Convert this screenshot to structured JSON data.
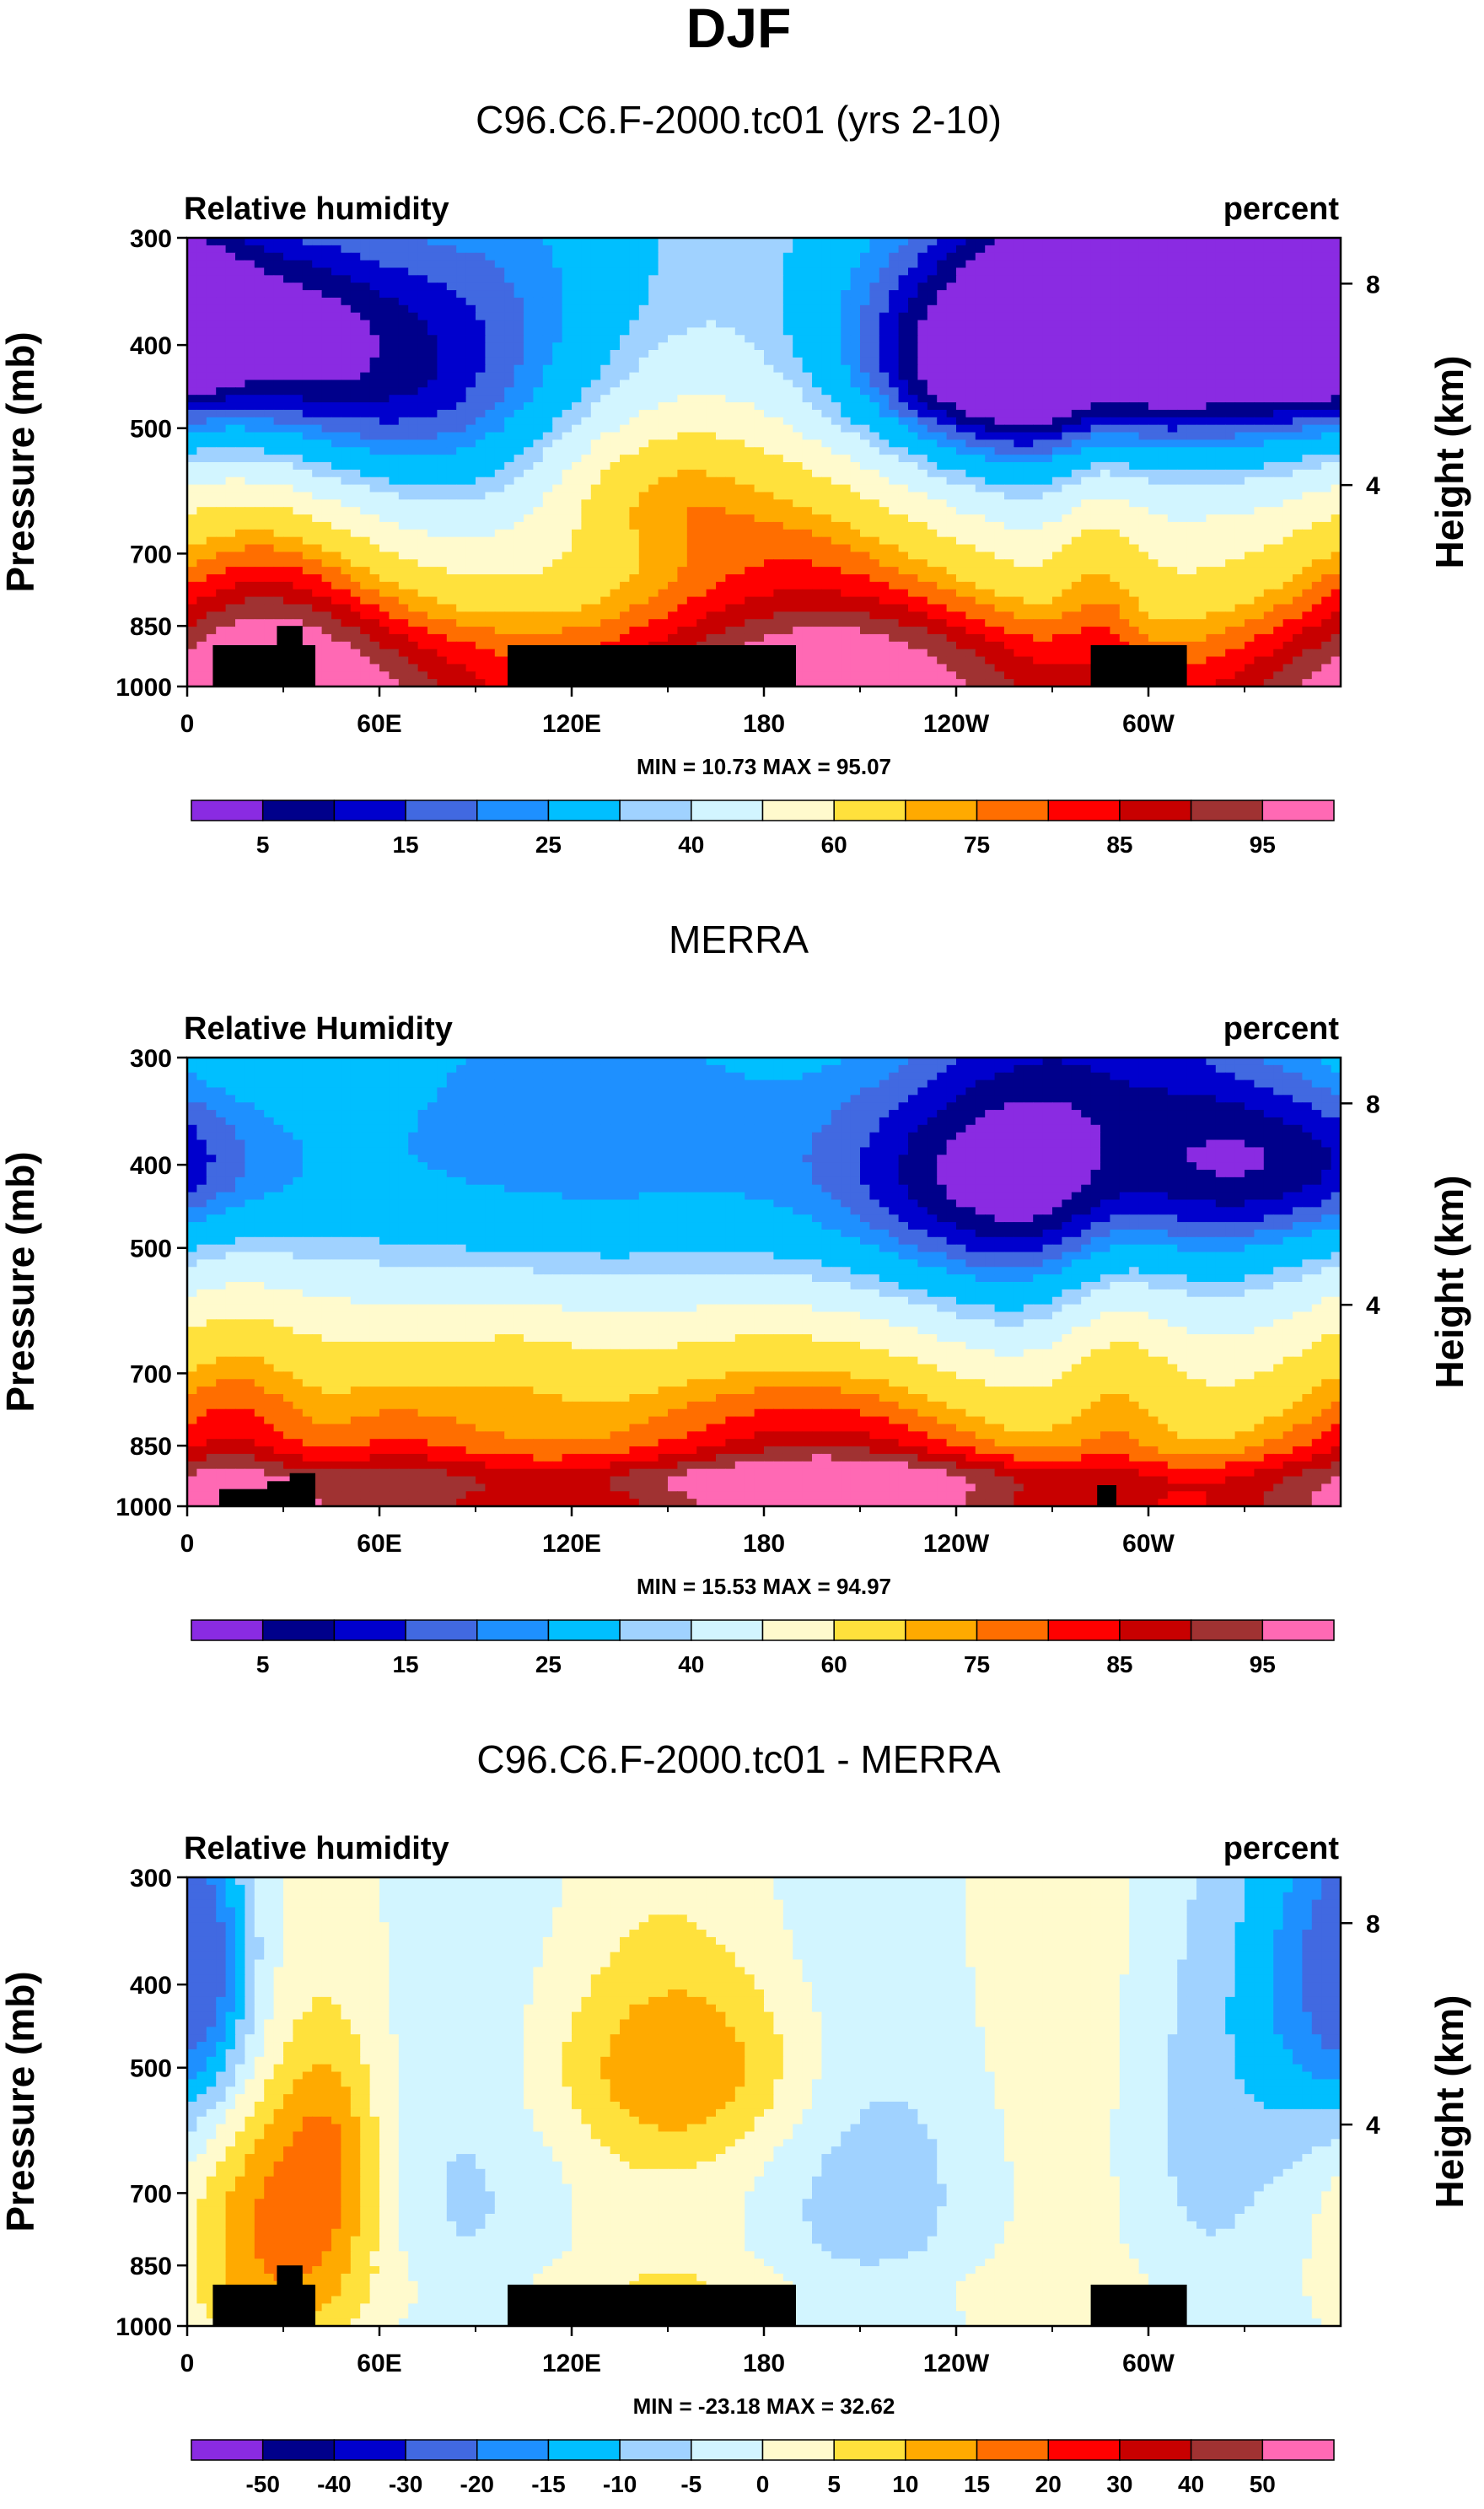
{
  "page_title": "DJF",
  "colors": {
    "abs_palette": [
      "#8a2be2",
      "#00008b",
      "#0000cd",
      "#4169e1",
      "#1e90ff",
      "#00bfff",
      "#a0d2ff",
      "#d2f5ff",
      "#fffacd",
      "#ffe13c",
      "#ffaa00",
      "#ff6e00",
      "#ff0000",
      "#c80000",
      "#a03232",
      "#ff69b4"
    ],
    "diff_palette": [
      "#8a2be2",
      "#00008b",
      "#0000cd",
      "#4169e1",
      "#1e90ff",
      "#00bfff",
      "#a0d2ff",
      "#d2f5ff",
      "#fffacd",
      "#ffe13c",
      "#ffaa00",
      "#ff6e00",
      "#ff0000",
      "#c80000",
      "#a03232",
      "#ff69b4"
    ],
    "land_mask": "#000000"
  },
  "chart_data": [
    {
      "type": "heatmap",
      "title": "C96.C6.F-2000.tc01 (yrs 2-10)",
      "left_label": "Relative humidity",
      "right_label": "percent",
      "ylabel": "Pressure (mb)",
      "y2label": "Height (km)",
      "x_ticks": [
        "0",
        "60E",
        "120E",
        "180",
        "120W",
        "60W"
      ],
      "x_tick_lon": [
        0,
        60,
        120,
        180,
        240,
        300
      ],
      "xlim": [
        0,
        360
      ],
      "y_ticks": [
        "300",
        "400",
        "500",
        "700",
        "850",
        "1000"
      ],
      "y_tick_p": [
        300,
        400,
        500,
        700,
        850,
        1000
      ],
      "ylim": [
        300,
        1000
      ],
      "y2_ticks": [
        "4",
        "8"
      ],
      "y2_tick_km": [
        4,
        8
      ],
      "stats": "MIN = 10.73  MAX = 95.07",
      "colorbar_labels": [
        "5",
        "15",
        "25",
        "40",
        "60",
        "75",
        "85",
        "95"
      ],
      "colorbar_label_boundary": [
        1,
        3,
        5,
        7,
        9,
        11,
        13,
        15
      ],
      "land": [
        [
          8,
          40,
          895
        ],
        [
          28,
          36,
          850
        ],
        [
          100,
          190,
          895
        ],
        [
          282,
          312,
          895
        ]
      ],
      "blobs": [
        [
          60,
          500,
          50,
          160,
          -18
        ],
        [
          65,
          415,
          45,
          120,
          -20
        ],
        [
          240,
          400,
          70,
          160,
          -42
        ],
        [
          250,
          430,
          35,
          70,
          -20
        ],
        [
          350,
          380,
          35,
          90,
          -40
        ],
        [
          355,
          390,
          12,
          40,
          -15
        ],
        [
          150,
          520,
          50,
          180,
          28
        ],
        [
          140,
          580,
          22,
          70,
          10
        ],
        [
          40,
          400,
          22,
          120,
          -12
        ],
        [
          92,
          560,
          40,
          150,
          -5
        ],
        [
          25,
          720,
          25,
          250,
          12
        ],
        [
          180,
          900,
          110,
          80,
          8
        ],
        [
          285,
          700,
          10,
          200,
          12
        ],
        [
          300,
          600,
          25,
          120,
          10
        ],
        [
          320,
          320,
          40,
          60,
          -10
        ]
      ]
    },
    {
      "type": "heatmap",
      "title": "MERRA",
      "left_label": "Relative Humidity",
      "right_label": "percent",
      "ylabel": "Pressure (mb)",
      "y2label": "Height (km)",
      "x_ticks": [
        "0",
        "60E",
        "120E",
        "180",
        "120W",
        "60W"
      ],
      "x_tick_lon": [
        0,
        60,
        120,
        180,
        240,
        300
      ],
      "xlim": [
        0,
        360
      ],
      "y_ticks": [
        "300",
        "400",
        "500",
        "700",
        "850",
        "1000"
      ],
      "y_tick_p": [
        300,
        400,
        500,
        700,
        850,
        1000
      ],
      "ylim": [
        300,
        1000
      ],
      "y2_ticks": [
        "4",
        "8"
      ],
      "y2_tick_km": [
        4,
        8
      ],
      "stats": "MIN = 15.53  MAX = 94.97",
      "colorbar_labels": [
        "5",
        "15",
        "25",
        "40",
        "60",
        "75",
        "85",
        "95"
      ],
      "colorbar_label_boundary": [
        1,
        3,
        5,
        7,
        9,
        11,
        13,
        15
      ],
      "land": [
        [
          10,
          40,
          955
        ],
        [
          25,
          35,
          935
        ],
        [
          32,
          40,
          915
        ],
        [
          284,
          290,
          945
        ]
      ],
      "blobs": [
        [
          45,
          420,
          40,
          140,
          -22
        ],
        [
          225,
          420,
          85,
          170,
          -38
        ],
        [
          250,
          420,
          40,
          80,
          -12
        ],
        [
          350,
          400,
          30,
          70,
          -22
        ],
        [
          125,
          660,
          60,
          200,
          15
        ],
        [
          105,
          660,
          15,
          90,
          5
        ],
        [
          290,
          680,
          15,
          200,
          15
        ],
        [
          20,
          660,
          20,
          150,
          5
        ],
        [
          180,
          930,
          160,
          40,
          10
        ],
        [
          40,
          800,
          15,
          200,
          -10
        ],
        [
          300,
          600,
          25,
          120,
          8
        ]
      ]
    },
    {
      "type": "heatmap",
      "title": "C96.C6.F-2000.tc01 - MERRA",
      "left_label": "Relative humidity",
      "right_label": "percent",
      "ylabel": "Pressure (mb)",
      "y2label": "Height (km)",
      "x_ticks": [
        "0",
        "60E",
        "120E",
        "180",
        "120W",
        "60W"
      ],
      "x_tick_lon": [
        0,
        60,
        120,
        180,
        240,
        300
      ],
      "xlim": [
        0,
        360
      ],
      "y_ticks": [
        "300",
        "400",
        "500",
        "700",
        "850",
        "1000"
      ],
      "y_tick_p": [
        300,
        400,
        500,
        700,
        850,
        1000
      ],
      "ylim": [
        300,
        1000
      ],
      "y2_ticks": [
        "4",
        "8"
      ],
      "y2_tick_km": [
        4,
        8
      ],
      "stats": "MIN = -23.18  MAX = 32.62",
      "colorbar_labels": [
        "-50",
        "-40",
        "-30",
        "-20",
        "-15",
        "-10",
        "-5",
        "0",
        "5",
        "10",
        "15",
        "20",
        "30",
        "40",
        "50"
      ],
      "colorbar_label_boundary": [
        1,
        2,
        3,
        4,
        5,
        6,
        7,
        8,
        9,
        10,
        11,
        12,
        13,
        14,
        15
      ],
      "land": [
        [
          8,
          40,
          895
        ],
        [
          28,
          36,
          850
        ],
        [
          100,
          190,
          895
        ],
        [
          282,
          312,
          895
        ]
      ],
      "blobs": [
        [
          355,
          400,
          20,
          150,
          -16
        ],
        [
          5,
          380,
          10,
          100,
          -14
        ],
        [
          155,
          500,
          30,
          90,
          12
        ],
        [
          220,
          700,
          30,
          180,
          -5
        ],
        [
          30,
          760,
          20,
          180,
          14
        ],
        [
          45,
          620,
          10,
          120,
          8
        ],
        [
          80,
          700,
          20,
          150,
          -3
        ],
        [
          175,
          900,
          90,
          50,
          3
        ],
        [
          312,
          600,
          15,
          200,
          -4
        ]
      ]
    }
  ]
}
